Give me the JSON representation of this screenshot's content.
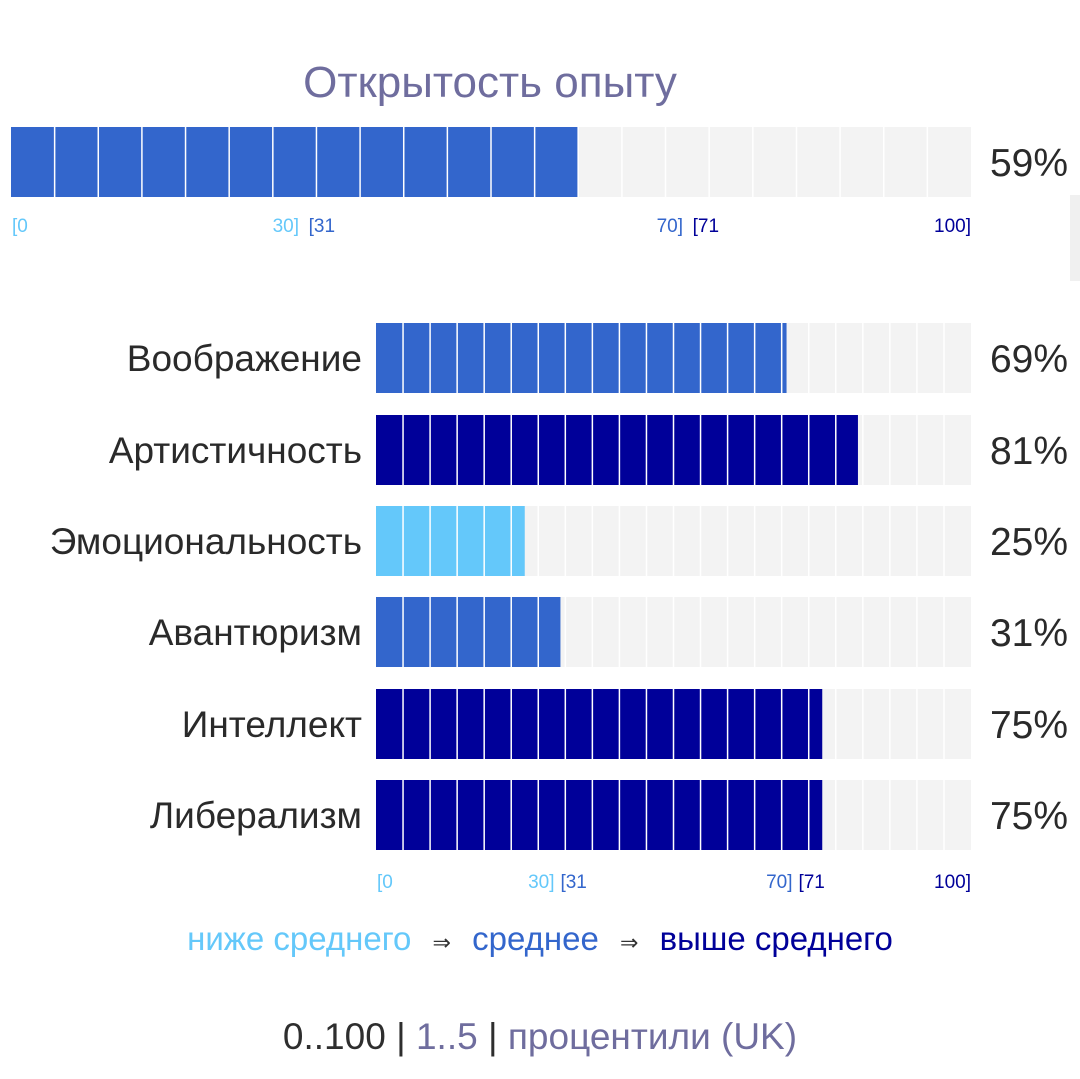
{
  "colors": {
    "below": "#64c8fa",
    "average": "#3366cc",
    "above": "#000099",
    "empty": "#f3f3f3",
    "title": "#6f6d9e",
    "scale_option": "#6f6d9e"
  },
  "chart_data": [
    {
      "type": "bar",
      "orientation": "horizontal",
      "title": "Открытость опыту",
      "categories": [
        ""
      ],
      "values": [
        59
      ],
      "value_labels": [
        "59%"
      ],
      "levels": [
        "average"
      ],
      "xlim": [
        0,
        100
      ],
      "segments": 22,
      "tick_labels": [
        "[0",
        "30]",
        "[31",
        "70]",
        "[71",
        "100]"
      ]
    },
    {
      "type": "bar",
      "orientation": "horizontal",
      "categories": [
        "Воображение",
        "Артистичность",
        "Эмоциональность",
        "Авантюризм",
        "Интеллект",
        "Либерализм"
      ],
      "values": [
        69,
        81,
        25,
        31,
        75,
        75
      ],
      "value_labels": [
        "69%",
        "81%",
        "25%",
        "31%",
        "75%",
        "75%"
      ],
      "levels": [
        "average",
        "above",
        "below",
        "average",
        "above",
        "above"
      ],
      "xlim": [
        0,
        100
      ],
      "segments": 22,
      "tick_labels": [
        "[0",
        "30]",
        "[31",
        "70]",
        "[71",
        "100]"
      ]
    }
  ],
  "legend": {
    "below": "ниже среднего",
    "arrow": "⇒",
    "average": "среднее",
    "above": "выше среднего"
  },
  "scale": {
    "range": "0..100",
    "sep": "|",
    "five": "1..5",
    "percentiles": "процентили (UK)"
  }
}
